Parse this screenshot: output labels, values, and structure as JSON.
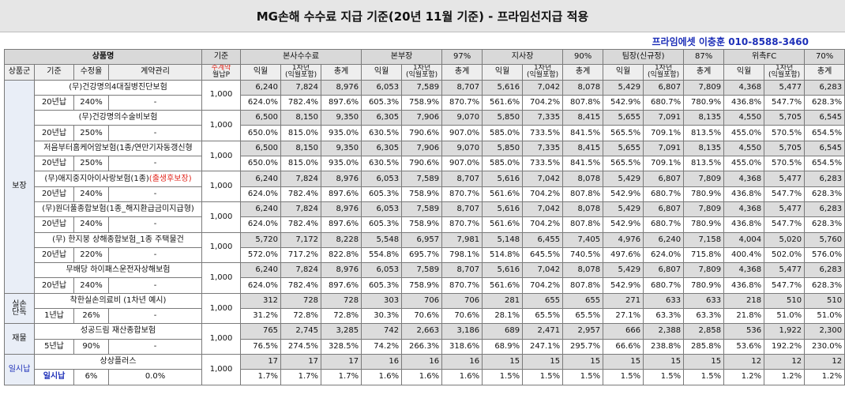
{
  "title": "MG손해 수수료 지급 기준(20년 11월 기준) - 프라임선지급 적용",
  "contact": "프라임에셋 이충훈 010-8588-3460",
  "header": {
    "product": "상품명",
    "basis": "기준",
    "sections": [
      {
        "name": "본사수수료",
        "pct": ""
      },
      {
        "name": "본부장",
        "pct": "97%"
      },
      {
        "name": "지사장",
        "pct": "90%"
      },
      {
        "name": "팀장(신규정)",
        "pct": "87%"
      },
      {
        "name": "위촉FC",
        "pct": "70%"
      }
    ],
    "sub_group": "상품군",
    "sub_basis": "기준",
    "sub_rate": "수정율",
    "sub_contract": "계약관리",
    "sub_premium_1": "주계약",
    "sub_premium_2": "월납P",
    "col_month": "익월",
    "col_first_1": "1차년",
    "col_first_2": "(익월포함)",
    "col_total": "총계"
  },
  "groups": [
    {
      "name": "보장",
      "products": [
        {
          "name": "(무)건강명의4대질병진단보험",
          "name_note": "",
          "basis": "20년납",
          "rate": "240%",
          "contract": "-",
          "premium": "1,000",
          "amounts": [
            "6,240",
            "7,824",
            "8,976",
            "6,053",
            "7,589",
            "8,707",
            "5,616",
            "7,042",
            "8,078",
            "5,429",
            "6,807",
            "7,809",
            "4,368",
            "5,477",
            "6,283"
          ],
          "pcts": [
            "624.0%",
            "782.4%",
            "897.6%",
            "605.3%",
            "758.9%",
            "870.7%",
            "561.6%",
            "704.2%",
            "807.8%",
            "542.9%",
            "680.7%",
            "780.9%",
            "436.8%",
            "547.7%",
            "628.3%"
          ]
        },
        {
          "name": "(무)건강명의수술비보험",
          "name_note": "",
          "basis": "20년납",
          "rate": "250%",
          "contract": "-",
          "premium": "1,000",
          "amounts": [
            "6,500",
            "8,150",
            "9,350",
            "6,305",
            "7,906",
            "9,070",
            "5,850",
            "7,335",
            "8,415",
            "5,655",
            "7,091",
            "8,135",
            "4,550",
            "5,705",
            "6,545"
          ],
          "pcts": [
            "650.0%",
            "815.0%",
            "935.0%",
            "630.5%",
            "790.6%",
            "907.0%",
            "585.0%",
            "733.5%",
            "841.5%",
            "565.5%",
            "709.1%",
            "813.5%",
            "455.0%",
            "570.5%",
            "654.5%"
          ]
        },
        {
          "name": "저음부터홈케어암보험(1종/연만기자동갱신형",
          "name_note": "",
          "basis": "20년납",
          "rate": "250%",
          "contract": "-",
          "premium": "1,000",
          "amounts": [
            "6,500",
            "8,150",
            "9,350",
            "6,305",
            "7,906",
            "9,070",
            "5,850",
            "7,335",
            "8,415",
            "5,655",
            "7,091",
            "8,135",
            "4,550",
            "5,705",
            "6,545"
          ],
          "pcts": [
            "650.0%",
            "815.0%",
            "935.0%",
            "630.5%",
            "790.6%",
            "907.0%",
            "585.0%",
            "733.5%",
            "841.5%",
            "565.5%",
            "709.1%",
            "813.5%",
            "455.0%",
            "570.5%",
            "654.5%"
          ]
        },
        {
          "name": "(무)애지중지아이사랑보험(1종)",
          "name_note": "(출생후보장)",
          "basis": "20년납",
          "rate": "240%",
          "contract": "-",
          "premium": "1,000",
          "amounts": [
            "6,240",
            "7,824",
            "8,976",
            "6,053",
            "7,589",
            "8,707",
            "5,616",
            "7,042",
            "8,078",
            "5,429",
            "6,807",
            "7,809",
            "4,368",
            "5,477",
            "6,283"
          ],
          "pcts": [
            "624.0%",
            "782.4%",
            "897.6%",
            "605.3%",
            "758.9%",
            "870.7%",
            "561.6%",
            "704.2%",
            "807.8%",
            "542.9%",
            "680.7%",
            "780.9%",
            "436.8%",
            "547.7%",
            "628.3%"
          ]
        },
        {
          "name": "(무)원더풀종합보험(1종_해지환급금미지급형)",
          "name_note": "",
          "basis": "20년납",
          "rate": "240%",
          "contract": "-",
          "premium": "1,000",
          "amounts": [
            "6,240",
            "7,824",
            "8,976",
            "6,053",
            "7,589",
            "8,707",
            "5,616",
            "7,042",
            "8,078",
            "5,429",
            "6,807",
            "7,809",
            "4,368",
            "5,477",
            "6,283"
          ],
          "pcts": [
            "624.0%",
            "782.4%",
            "897.6%",
            "605.3%",
            "758.9%",
            "870.7%",
            "561.6%",
            "704.2%",
            "807.8%",
            "542.9%",
            "680.7%",
            "780.9%",
            "436.8%",
            "547.7%",
            "628.3%"
          ]
        },
        {
          "name": "(무) 한지붕 상해종합보험_1종 주택물건",
          "name_note": "",
          "basis": "20년납",
          "rate": "220%",
          "contract": "-",
          "premium": "1,000",
          "amounts": [
            "5,720",
            "7,172",
            "8,228",
            "5,548",
            "6,957",
            "7,981",
            "5,148",
            "6,455",
            "7,405",
            "4,976",
            "6,240",
            "7,158",
            "4,004",
            "5,020",
            "5,760"
          ],
          "pcts": [
            "572.0%",
            "717.2%",
            "822.8%",
            "554.8%",
            "695.7%",
            "798.1%",
            "514.8%",
            "645.5%",
            "740.5%",
            "497.6%",
            "624.0%",
            "715.8%",
            "400.4%",
            "502.0%",
            "576.0%"
          ]
        },
        {
          "name": "무배당 하이패스운전자상해보험",
          "name_note": "",
          "basis": "20년납",
          "rate": "240%",
          "contract": "-",
          "premium": "1,000",
          "amounts": [
            "6,240",
            "7,824",
            "8,976",
            "6,053",
            "7,589",
            "8,707",
            "5,616",
            "7,042",
            "8,078",
            "5,429",
            "6,807",
            "7,809",
            "4,368",
            "5,477",
            "6,283"
          ],
          "pcts": [
            "624.0%",
            "782.4%",
            "897.6%",
            "605.3%",
            "758.9%",
            "870.7%",
            "561.6%",
            "704.2%",
            "807.8%",
            "542.9%",
            "680.7%",
            "780.9%",
            "436.8%",
            "547.7%",
            "628.3%"
          ]
        }
      ]
    },
    {
      "name": "실손\n단독",
      "products": [
        {
          "name": "착한실손의료비 (1차년 예시)",
          "name_note": "",
          "basis": "1년납",
          "rate": "26%",
          "contract": "-",
          "premium": "1,000",
          "amounts": [
            "312",
            "728",
            "728",
            "303",
            "706",
            "706",
            "281",
            "655",
            "655",
            "271",
            "633",
            "633",
            "218",
            "510",
            "510"
          ],
          "pcts": [
            "31.2%",
            "72.8%",
            "72.8%",
            "30.3%",
            "70.6%",
            "70.6%",
            "28.1%",
            "65.5%",
            "65.5%",
            "27.1%",
            "63.3%",
            "63.3%",
            "21.8%",
            "51.0%",
            "51.0%"
          ]
        }
      ]
    },
    {
      "name": "재물",
      "products": [
        {
          "name": "성공드림 재산종합보험",
          "name_note": "",
          "basis": "5년납",
          "rate": "90%",
          "contract": "-",
          "premium": "1,000",
          "amounts": [
            "765",
            "2,745",
            "3,285",
            "742",
            "2,663",
            "3,186",
            "689",
            "2,471",
            "2,957",
            "666",
            "2,388",
            "2,858",
            "536",
            "1,922",
            "2,300"
          ],
          "pcts": [
            "76.5%",
            "274.5%",
            "328.5%",
            "74.2%",
            "266.3%",
            "318.6%",
            "68.9%",
            "247.1%",
            "295.7%",
            "66.6%",
            "238.8%",
            "285.8%",
            "53.6%",
            "192.2%",
            "230.0%"
          ]
        }
      ]
    },
    {
      "name": "일시납",
      "products": [
        {
          "name": "상상플러스",
          "name_note": "",
          "basis": "일시납",
          "rate": "6%",
          "contract": "0.0%",
          "premium": "1,000",
          "amounts": [
            "17",
            "17",
            "17",
            "16",
            "16",
            "16",
            "15",
            "15",
            "15",
            "15",
            "15",
            "15",
            "12",
            "12",
            "12"
          ],
          "pcts": [
            "1.7%",
            "1.7%",
            "1.7%",
            "1.6%",
            "1.6%",
            "1.6%",
            "1.5%",
            "1.5%",
            "1.5%",
            "1.5%",
            "1.5%",
            "1.5%",
            "1.2%",
            "1.2%",
            "1.2%"
          ]
        }
      ]
    }
  ]
}
